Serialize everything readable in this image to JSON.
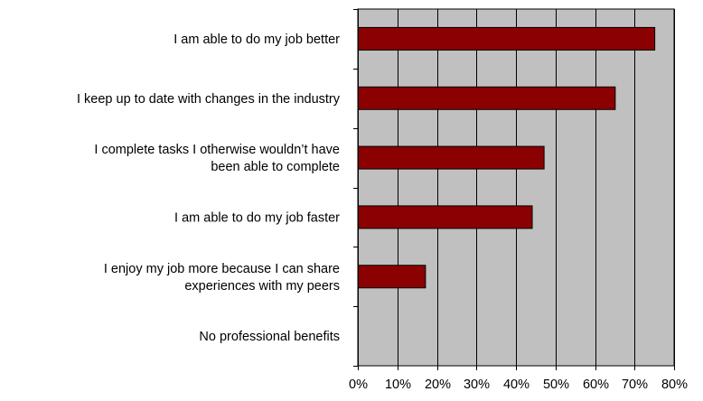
{
  "chart_data": {
    "type": "bar",
    "orientation": "horizontal",
    "categories": [
      [
        "I am able to do my job better"
      ],
      [
        "I keep up to date with changes in the industry"
      ],
      [
        "I complete tasks I otherwise wouldn’t have",
        "been able to complete"
      ],
      [
        "I am able to do my job faster"
      ],
      [
        "I enjoy my job more because I can share",
        "experiences with my peers"
      ],
      [
        "No professional benefits"
      ]
    ],
    "values": [
      75,
      65,
      47,
      44,
      17,
      0
    ],
    "xlim": [
      0,
      80
    ],
    "xticks": [
      0,
      10,
      20,
      30,
      40,
      50,
      60,
      70,
      80
    ],
    "tick_format": "percent",
    "title": "",
    "xlabel": "",
    "ylabel": "",
    "grid": true,
    "legend": "none",
    "colors": {
      "bar": "#8B0000",
      "bar_edge": "#000000",
      "plot_background": "#C0C0C0",
      "gridline": "#000000"
    }
  }
}
